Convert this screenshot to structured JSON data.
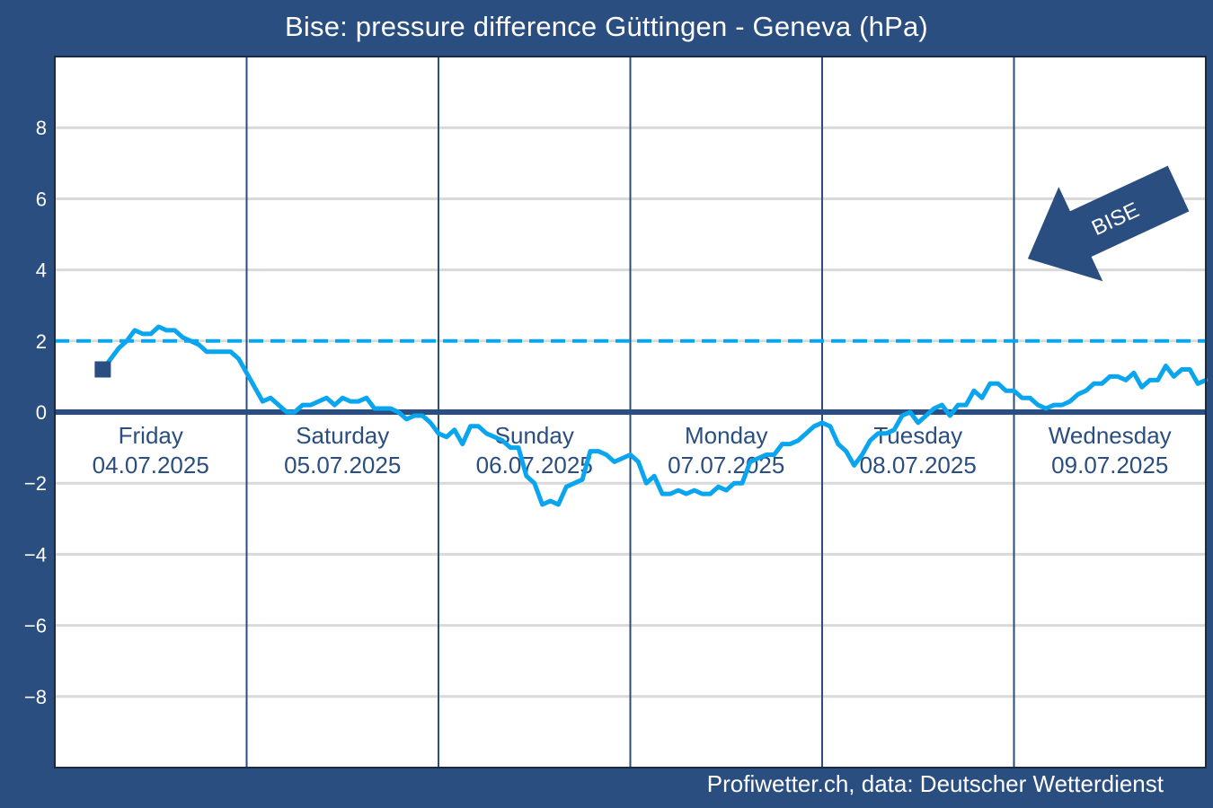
{
  "title": "Bise: pressure difference Güttingen - Geneva (hPa)",
  "credit": "Profiwetter.ch, data: Deutscher Wetterdienst",
  "arrow_label": "BISE",
  "colors": {
    "background": "#2a4e7f",
    "plot": "#ffffff",
    "grid": "#d9d9d9",
    "series": "#0aa5ef",
    "threshold": "#0aa5ef",
    "zero_line": "#2a4e7f",
    "day_separator": "#2a4e7f",
    "arrow": "#2a4e7f"
  },
  "chart_data": {
    "type": "line",
    "title": "Bise: pressure difference Güttingen - Geneva (hPa)",
    "xlabel": "",
    "ylabel": "",
    "ylim": [
      -10,
      10
    ],
    "xlim_hours": [
      0,
      144
    ],
    "yticks": [
      8,
      6,
      4,
      2,
      0,
      -2,
      -4,
      -6,
      -8
    ],
    "ytick_labels": [
      "8",
      "6",
      "4",
      "2",
      "0",
      "−2",
      "−4",
      "−6",
      "−8"
    ],
    "grid": true,
    "threshold": 2,
    "zero_line": 0,
    "days": [
      {
        "name": "Friday",
        "date": "04.07.2025"
      },
      {
        "name": "Saturday",
        "date": "05.07.2025"
      },
      {
        "name": "Sunday",
        "date": "06.07.2025"
      },
      {
        "name": "Monday",
        "date": "07.07.2025"
      },
      {
        "name": "Tuesday",
        "date": "08.07.2025"
      },
      {
        "name": "Wednesday",
        "date": "09.07.2025"
      }
    ],
    "start_marker": {
      "hour": 6,
      "value": 1.2
    },
    "series": [
      {
        "points": [
          [
            6,
            1.2
          ],
          [
            7,
            1.5
          ],
          [
            8,
            1.8
          ],
          [
            9,
            2.0
          ],
          [
            10,
            2.3
          ],
          [
            11,
            2.2
          ],
          [
            12,
            2.2
          ],
          [
            13,
            2.4
          ],
          [
            14,
            2.3
          ],
          [
            15,
            2.3
          ],
          [
            16,
            2.1
          ],
          [
            17,
            2.0
          ],
          [
            18,
            1.9
          ],
          [
            19,
            1.7
          ],
          [
            20,
            1.7
          ],
          [
            21,
            1.7
          ],
          [
            22,
            1.7
          ],
          [
            23,
            1.5
          ],
          [
            24,
            1.1
          ],
          [
            25,
            0.7
          ],
          [
            26,
            0.3
          ],
          [
            27,
            0.4
          ],
          [
            28,
            0.2
          ],
          [
            29,
            0.0
          ],
          [
            30,
            0.0
          ],
          [
            31,
            0.2
          ],
          [
            32,
            0.2
          ],
          [
            33,
            0.3
          ],
          [
            34,
            0.4
          ],
          [
            35,
            0.2
          ],
          [
            36,
            0.4
          ],
          [
            37,
            0.3
          ],
          [
            38,
            0.3
          ],
          [
            39,
            0.4
          ],
          [
            40,
            0.1
          ],
          [
            41,
            0.1
          ],
          [
            42,
            0.1
          ],
          [
            43,
            0.0
          ],
          [
            44,
            -0.2
          ],
          [
            45,
            -0.1
          ],
          [
            46,
            -0.1
          ],
          [
            47,
            -0.3
          ],
          [
            48,
            -0.6
          ],
          [
            49,
            -0.7
          ],
          [
            50,
            -0.5
          ],
          [
            51,
            -0.9
          ],
          [
            52,
            -0.4
          ],
          [
            53,
            -0.4
          ],
          [
            54,
            -0.6
          ],
          [
            55,
            -0.7
          ],
          [
            56,
            -0.8
          ],
          [
            57,
            -1.0
          ],
          [
            58,
            -1.0
          ],
          [
            59,
            -1.8
          ],
          [
            60,
            -2.0
          ],
          [
            61,
            -2.6
          ],
          [
            62,
            -2.5
          ],
          [
            63,
            -2.6
          ],
          [
            64,
            -2.1
          ],
          [
            65,
            -2.0
          ],
          [
            66,
            -1.9
          ],
          [
            67,
            -1.1
          ],
          [
            68,
            -1.1
          ],
          [
            69,
            -1.2
          ],
          [
            70,
            -1.4
          ],
          [
            71,
            -1.3
          ],
          [
            72,
            -1.2
          ],
          [
            73,
            -1.4
          ],
          [
            74,
            -2.0
          ],
          [
            75,
            -1.8
          ],
          [
            76,
            -2.3
          ],
          [
            77,
            -2.3
          ],
          [
            78,
            -2.2
          ],
          [
            79,
            -2.3
          ],
          [
            80,
            -2.2
          ],
          [
            81,
            -2.3
          ],
          [
            82,
            -2.3
          ],
          [
            83,
            -2.1
          ],
          [
            84,
            -2.2
          ],
          [
            85,
            -2.0
          ],
          [
            86,
            -2.0
          ],
          [
            87,
            -1.4
          ],
          [
            88,
            -1.3
          ],
          [
            89,
            -1.2
          ],
          [
            90,
            -1.2
          ],
          [
            91,
            -0.9
          ],
          [
            92,
            -0.9
          ],
          [
            93,
            -0.8
          ],
          [
            94,
            -0.6
          ],
          [
            95,
            -0.4
          ],
          [
            96,
            -0.3
          ],
          [
            97,
            -0.4
          ],
          [
            98,
            -0.9
          ],
          [
            99,
            -1.1
          ],
          [
            100,
            -1.5
          ],
          [
            101,
            -1.2
          ],
          [
            102,
            -0.8
          ],
          [
            103,
            -0.6
          ],
          [
            104,
            -0.6
          ],
          [
            105,
            -0.5
          ],
          [
            106,
            -0.1
          ],
          [
            107,
            0.0
          ],
          [
            108,
            -0.3
          ],
          [
            109,
            -0.1
          ],
          [
            110,
            0.1
          ],
          [
            111,
            0.2
          ],
          [
            112,
            -0.1
          ],
          [
            113,
            0.2
          ],
          [
            114,
            0.2
          ],
          [
            115,
            0.6
          ],
          [
            116,
            0.4
          ],
          [
            117,
            0.8
          ],
          [
            118,
            0.8
          ],
          [
            119,
            0.6
          ],
          [
            120,
            0.6
          ],
          [
            121,
            0.4
          ],
          [
            122,
            0.4
          ],
          [
            123,
            0.2
          ],
          [
            124,
            0.1
          ],
          [
            125,
            0.2
          ],
          [
            126,
            0.2
          ],
          [
            127,
            0.3
          ],
          [
            128,
            0.5
          ],
          [
            129,
            0.6
          ],
          [
            130,
            0.8
          ],
          [
            131,
            0.8
          ],
          [
            132,
            1.0
          ],
          [
            133,
            1.0
          ],
          [
            134,
            0.9
          ],
          [
            135,
            1.1
          ],
          [
            136,
            0.7
          ],
          [
            137,
            0.9
          ],
          [
            138,
            0.9
          ],
          [
            139,
            1.3
          ],
          [
            140,
            1.0
          ],
          [
            141,
            1.2
          ],
          [
            142,
            1.2
          ],
          [
            143,
            0.8
          ],
          [
            144,
            0.9
          ]
        ]
      }
    ]
  }
}
